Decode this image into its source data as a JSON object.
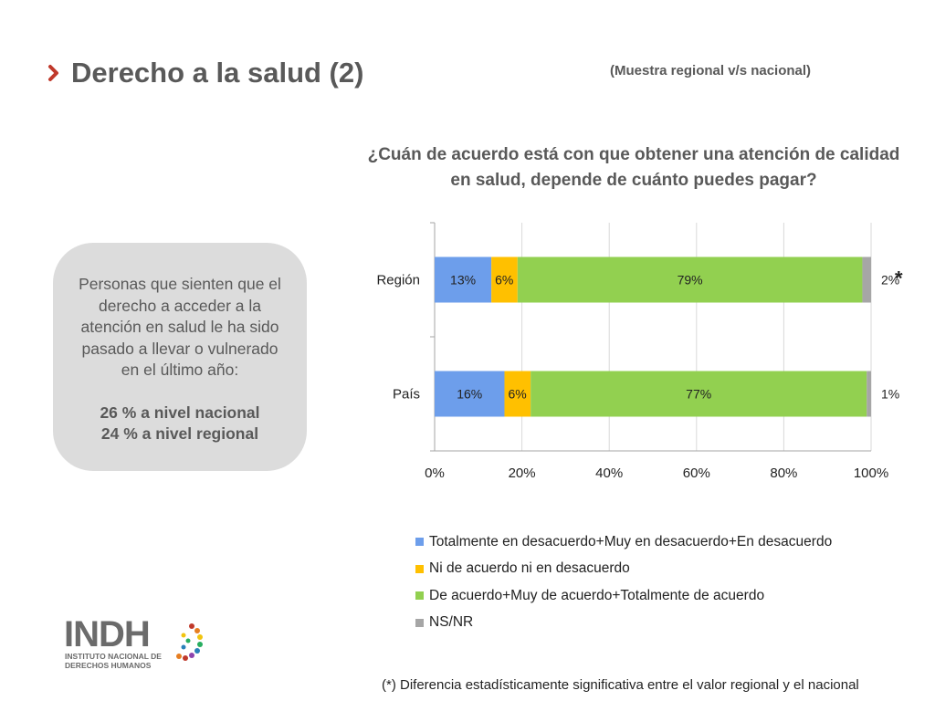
{
  "header": {
    "title": "Derecho a la salud (2)",
    "subtitle": "(Muestra regional v/s nacional)"
  },
  "question": {
    "line1": "¿Cuán de acuerdo está con que obtener una atención de calidad",
    "line2": "en salud, depende de cuánto puedes pagar?"
  },
  "info_box": {
    "body": "Personas que sienten que el derecho a acceder a la atención en salud le ha sido pasado a llevar o vulnerado en el último año:",
    "stat1": "26 % a nivel nacional",
    "stat2": "24 % a nivel regional"
  },
  "chart_data": {
    "type": "bar",
    "orientation": "horizontal",
    "stacked": true,
    "categories": [
      "Región",
      "País"
    ],
    "series": [
      {
        "name": "Totalmente en desacuerdo+Muy en desacuerdo+En desacuerdo",
        "values": [
          13,
          16
        ],
        "labels": [
          "13%",
          "16%"
        ],
        "color": "#6d9eeb"
      },
      {
        "name": "Ni de acuerdo ni en desacuerdo",
        "values": [
          6,
          6
        ],
        "labels": [
          "6%",
          "6%"
        ],
        "color": "#ffc000"
      },
      {
        "name": "De acuerdo+Muy de acuerdo+Totalmente de acuerdo",
        "values": [
          79,
          77
        ],
        "labels": [
          "79%",
          "77%"
        ],
        "color": "#92d050"
      },
      {
        "name": "NS/NR",
        "values": [
          2,
          1
        ],
        "labels": [
          "2%",
          "1%"
        ],
        "color": "#a6a6a6"
      }
    ],
    "xlim": [
      0,
      100
    ],
    "xticks": [
      "0%",
      "20%",
      "40%",
      "60%",
      "80%",
      "100%"
    ],
    "grid": true,
    "legend_position": "bottom",
    "annotation": "*"
  },
  "footnote": "(*) Diferencia estadísticamente significativa entre el valor regional y el nacional",
  "logo": {
    "mark": "INDH",
    "line1": "INSTITUTO NACIONAL DE",
    "line2": "DERECHOS HUMANOS"
  },
  "colors": {
    "accent": "#c0392b",
    "title": "#595959",
    "box": "#dcdcdc"
  }
}
